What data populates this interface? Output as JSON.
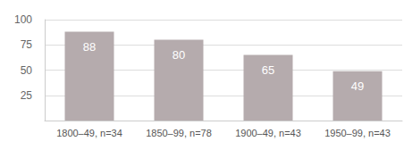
{
  "chart_data": {
    "type": "bar",
    "categories": [
      "1800–49, n=34",
      "1850–99, n=78",
      "1900–49, n=43",
      "1950–99, n=43"
    ],
    "values": [
      88,
      80,
      65,
      49
    ],
    "color": "#b5abad",
    "ylim": [
      0,
      100
    ],
    "yticks": [
      25,
      50,
      75,
      100
    ],
    "grid": true,
    "data_labels": true
  }
}
